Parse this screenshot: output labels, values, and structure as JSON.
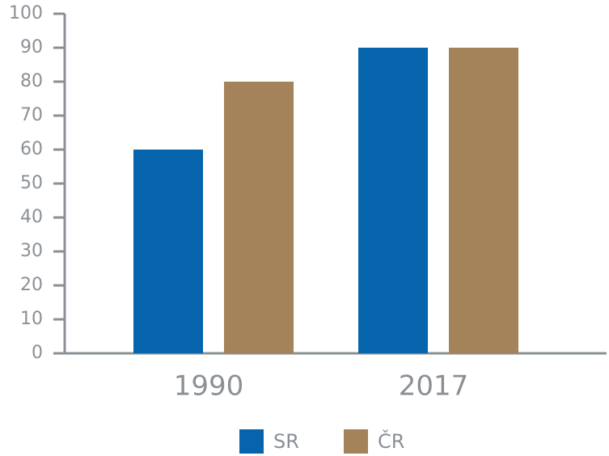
{
  "chart_data": {
    "type": "bar",
    "categories": [
      "1990",
      "2017"
    ],
    "series": [
      {
        "name": "SR",
        "color": "#0564ab",
        "values": [
          60,
          90
        ]
      },
      {
        "name": "ČR",
        "color": "#a4825a",
        "values": [
          80,
          90
        ]
      }
    ],
    "ylim": [
      0,
      100
    ],
    "yticks": [
      0,
      10,
      20,
      30,
      40,
      50,
      60,
      70,
      80,
      90,
      100
    ]
  }
}
